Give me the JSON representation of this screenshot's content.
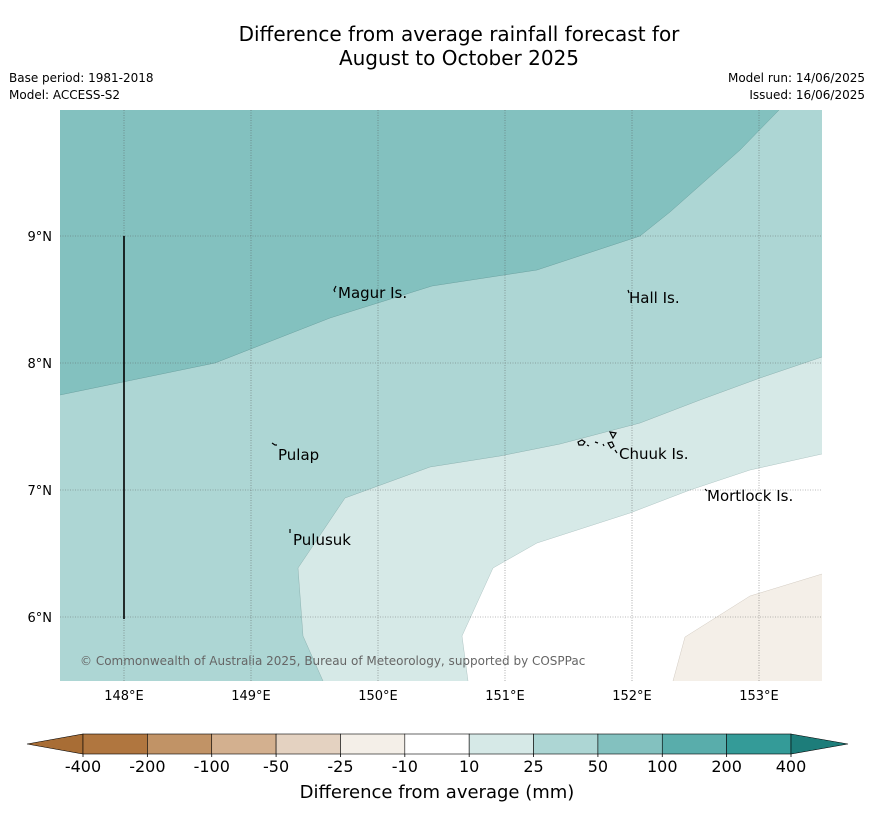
{
  "title_line1": "Difference from average rainfall forecast for",
  "title_line2": "August to October 2025",
  "base_period": "Base period: 1981-2018",
  "model": "Model: ACCESS-S2",
  "model_run": "Model run: 14/06/2025",
  "issued": "Issued: 16/06/2025",
  "copyright": "© Commonwealth of Australia 2025, Bureau of Meteorology, supported by COSPPac",
  "map": {
    "lon_ticks": [
      "148°E",
      "149°E",
      "150°E",
      "151°E",
      "152°E",
      "153°E"
    ],
    "lat_ticks": [
      "9°N",
      "8°N",
      "7°N",
      "6°N"
    ],
    "place_labels": [
      "Magur Is.",
      "Hall Is.",
      "Pulap",
      "Chuuk Is.",
      "Mortlock Is.",
      "Pulusuk"
    ]
  },
  "colorbar": {
    "label": "Difference from average (mm)",
    "tick_labels": [
      "-400",
      "-200",
      "-100",
      "-50",
      "-25",
      "-10",
      "10",
      "25",
      "50",
      "100",
      "200",
      "400"
    ],
    "colors": [
      "#a86d35",
      "#b0763f",
      "#c19366",
      "#d3b08f",
      "#e4d2c1",
      "#f4efe8",
      "#ffffff",
      "#d6e9e7",
      "#add6d4",
      "#83c1bf",
      "#59adab",
      "#349b98",
      "#1d7d7a"
    ]
  }
}
